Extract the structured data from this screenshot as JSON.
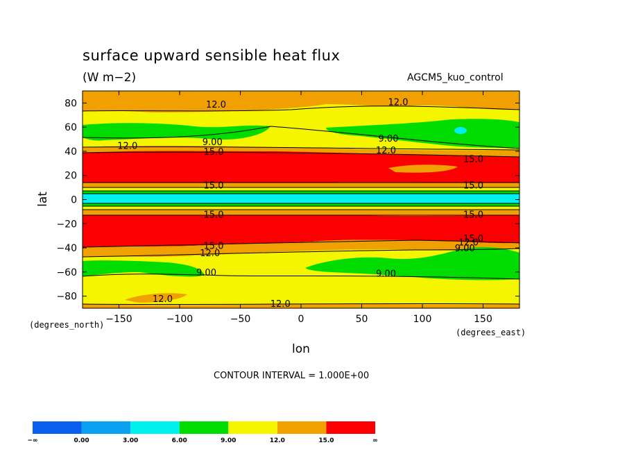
{
  "chart_data": {
    "type": "contour",
    "title": "surface upward sensible heat flux",
    "units": "(W m−2)",
    "experiment": "AGCM5_kuo_control",
    "xlabel": "lon",
    "ylabel": "lat",
    "x_units_label": "(degrees_east)",
    "y_units_label": "(degrees_north)",
    "xlim": [
      -180,
      180
    ],
    "ylim": [
      -90,
      90
    ],
    "x_ticks": [
      -150,
      -100,
      -50,
      0,
      50,
      100,
      150
    ],
    "x_tick_labels": [
      "−150",
      "−100",
      "−50",
      "0",
      "50",
      "100",
      "150"
    ],
    "y_ticks": [
      80,
      60,
      40,
      20,
      0,
      -20,
      -40,
      -60,
      -80
    ],
    "y_tick_labels": [
      "80",
      "60",
      "40",
      "20",
      "0",
      "−20",
      "−40",
      "−60",
      "−80"
    ],
    "contour_interval": "CONTOUR INTERVAL = 1.000E+00",
    "levels": [
      0,
      3,
      6,
      9,
      12,
      15
    ],
    "colorbar": {
      "colors": [
        "#0a5ff0",
        "#0aa0f0",
        "#00f0f0",
        "#00dc00",
        "#f5f500",
        "#f0a000",
        "#fa0000"
      ],
      "tick_labels": [
        "−∞",
        "0.00",
        "3.00",
        "6.00",
        "9.00",
        "12.0",
        "15.0",
        "∞"
      ]
    },
    "zonal_bands": [
      {
        "lat_from": 90,
        "lat_to": 82,
        "value_range": "12-15"
      },
      {
        "lat_from": 82,
        "lat_to": 62,
        "value_range": "9-12"
      },
      {
        "lat_from": 62,
        "lat_to": 50,
        "value_range": "6-9"
      },
      {
        "lat_from": 50,
        "lat_to": 42,
        "value_range": "9-12"
      },
      {
        "lat_from": 42,
        "lat_to": 38,
        "value_range": "12-15"
      },
      {
        "lat_from": 38,
        "lat_to": 13,
        "value_range": ">15"
      },
      {
        "lat_from": 13,
        "lat_to": 8,
        "value_range": "12-15"
      },
      {
        "lat_from": 8,
        "lat_to": 5,
        "value_range": "6-12"
      },
      {
        "lat_from": 5,
        "lat_to": -3,
        "value_range": "3-6"
      },
      {
        "lat_from": -3,
        "lat_to": -8,
        "value_range": "6-12"
      },
      {
        "lat_from": -8,
        "lat_to": -13,
        "value_range": "12-15"
      },
      {
        "lat_from": -13,
        "lat_to": -37,
        "value_range": ">15"
      },
      {
        "lat_from": -37,
        "lat_to": -45,
        "value_range": "12-15"
      },
      {
        "lat_from": -45,
        "lat_to": -52,
        "value_range": "9-12"
      },
      {
        "lat_from": -52,
        "lat_to": -62,
        "value_range": "6-9"
      },
      {
        "lat_from": -62,
        "lat_to": -90,
        "value_range": "9-12"
      }
    ],
    "contour_labels": [
      {
        "text": "12.0",
        "lon": -70,
        "lat": 79
      },
      {
        "text": "12.0",
        "lon": 80,
        "lat": 81
      },
      {
        "text": "9.00",
        "lon": -73,
        "lat": 48
      },
      {
        "text": "9.00",
        "lon": 72,
        "lat": 51
      },
      {
        "text": "12.0",
        "lon": -143,
        "lat": 45
      },
      {
        "text": "12.0",
        "lon": 70,
        "lat": 41
      },
      {
        "text": "15.0",
        "lon": -72,
        "lat": 40
      },
      {
        "text": "15.0",
        "lon": 142,
        "lat": 34
      },
      {
        "text": "15.0",
        "lon": -72,
        "lat": 12
      },
      {
        "text": "15.0",
        "lon": 142,
        "lat": 12
      },
      {
        "text": "15.0",
        "lon": -72,
        "lat": -12
      },
      {
        "text": "15.0",
        "lon": 142,
        "lat": -12
      },
      {
        "text": "15.0",
        "lon": -72,
        "lat": -38
      },
      {
        "text": "15.0",
        "lon": 142,
        "lat": -32
      },
      {
        "text": "12.0",
        "lon": -75,
        "lat": -44
      },
      {
        "text": "12.0",
        "lon": 138,
        "lat": -35
      },
      {
        "text": "9.00",
        "lon": 135,
        "lat": -40
      },
      {
        "text": "9.00",
        "lon": -78,
        "lat": -60
      },
      {
        "text": "9.00",
        "lon": 70,
        "lat": -61
      },
      {
        "text": "12.0",
        "lon": -114,
        "lat": -82
      },
      {
        "text": "12.0",
        "lon": -17,
        "lat": -86
      }
    ]
  }
}
